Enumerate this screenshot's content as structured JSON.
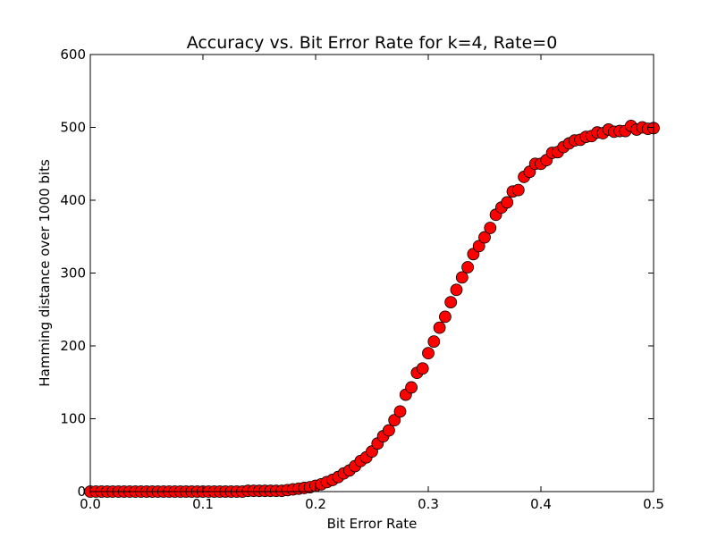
{
  "chart_data": {
    "type": "scatter",
    "title": "Accuracy vs. Bit Error Rate for k=4, Rate=0",
    "xlabel": "Bit Error Rate",
    "ylabel": "Hamming distance over 1000 bits",
    "xlim": [
      0.0,
      0.5
    ],
    "ylim": [
      0,
      600
    ],
    "xticks": [
      "0.0",
      "0.1",
      "0.2",
      "0.3",
      "0.4",
      "0.5"
    ],
    "yticks": [
      "0",
      "100",
      "200",
      "300",
      "400",
      "500",
      "600"
    ],
    "grid": false,
    "marker_color": "#ff0000",
    "marker_edge_color": "#000000",
    "series": [
      {
        "x": [
          0.0,
          0.005,
          0.01,
          0.015,
          0.02,
          0.025,
          0.03,
          0.035,
          0.04,
          0.045,
          0.05,
          0.055,
          0.06,
          0.065,
          0.07,
          0.075,
          0.08,
          0.085,
          0.09,
          0.095,
          0.1,
          0.105,
          0.11,
          0.115,
          0.12,
          0.125,
          0.13,
          0.135,
          0.14,
          0.145,
          0.15,
          0.155,
          0.16,
          0.165,
          0.17,
          0.175,
          0.18,
          0.185,
          0.19,
          0.195,
          0.2,
          0.205,
          0.21,
          0.215,
          0.22,
          0.225,
          0.23,
          0.235,
          0.24,
          0.245,
          0.25,
          0.255,
          0.26,
          0.265,
          0.27,
          0.275,
          0.28,
          0.285,
          0.29,
          0.295,
          0.3,
          0.305,
          0.31,
          0.315,
          0.32,
          0.325,
          0.33,
          0.335,
          0.34,
          0.345,
          0.35,
          0.355,
          0.36,
          0.365,
          0.37,
          0.375,
          0.38,
          0.385,
          0.39,
          0.395,
          0.4,
          0.405,
          0.41,
          0.415,
          0.42,
          0.425,
          0.43,
          0.435,
          0.44,
          0.445,
          0.45,
          0.455,
          0.46,
          0.465,
          0.47,
          0.475,
          0.48,
          0.485,
          0.49,
          0.495,
          0.5
        ],
        "y": [
          0,
          0,
          0,
          0,
          0,
          0,
          0,
          0,
          0,
          0,
          0,
          0,
          0,
          0,
          0,
          0,
          0,
          0,
          0,
          0,
          0,
          0,
          0,
          0,
          0,
          0,
          0,
          0,
          1,
          1,
          1,
          1,
          1,
          1,
          1,
          2,
          3,
          4,
          5,
          6,
          8,
          10,
          13,
          16,
          20,
          25,
          29,
          35,
          42,
          47,
          55,
          66,
          76,
          84,
          98,
          110,
          133,
          143,
          163,
          169,
          190,
          206,
          225,
          240,
          260,
          277,
          294,
          308,
          326,
          337,
          349,
          362,
          380,
          390,
          397,
          412,
          414,
          432,
          439,
          450,
          450,
          455,
          465,
          466,
          473,
          478,
          482,
          483,
          487,
          488,
          493,
          492,
          497,
          494,
          495,
          495,
          502,
          497,
          500,
          498,
          499
        ]
      }
    ]
  }
}
